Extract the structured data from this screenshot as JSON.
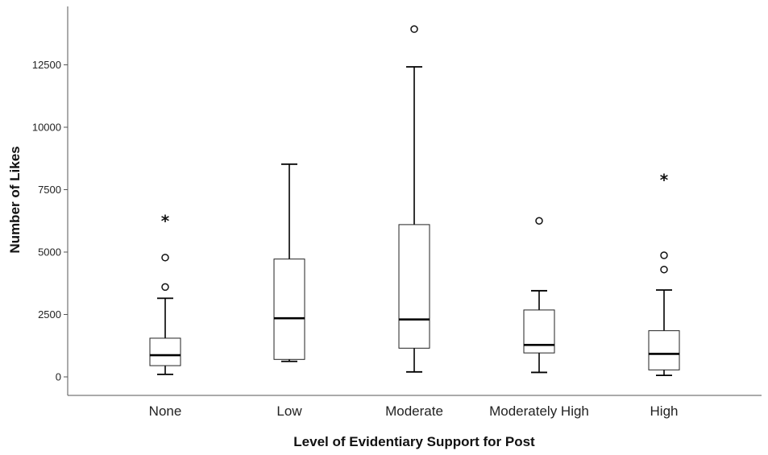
{
  "chart_data": {
    "type": "boxplot",
    "xlabel": "Level of Evidentiary Support for Post",
    "ylabel": "Number of Likes",
    "ylim": [
      -600,
      15000
    ],
    "yticks": [
      0,
      2500,
      5000,
      7500,
      10000,
      12500
    ],
    "ytick_labels": [
      "0",
      "2500",
      "5000",
      "7500",
      "10000",
      "12500"
    ],
    "grid": false,
    "categories": [
      "None",
      "Low",
      "Moderate",
      "Moderately High",
      "High"
    ],
    "boxes": [
      {
        "category": "None",
        "whisker_low": 100,
        "q1": 450,
        "median": 870,
        "q3": 1550,
        "whisker_high": 3150,
        "outliers": [
          4780,
          3600
        ],
        "extremes": [
          6300
        ]
      },
      {
        "category": "Low",
        "whisker_low": 620,
        "q1": 700,
        "median": 2350,
        "q3": 4720,
        "whisker_high": 8520,
        "outliers": [],
        "extremes": []
      },
      {
        "category": "Moderate",
        "whisker_low": 200,
        "q1": 1150,
        "median": 2300,
        "q3": 6100,
        "whisker_high": 12420,
        "outliers": [
          13930
        ],
        "extremes": []
      },
      {
        "category": "Moderately High",
        "whisker_low": 180,
        "q1": 960,
        "median": 1280,
        "q3": 2680,
        "whisker_high": 3450,
        "outliers": [
          6250
        ],
        "extremes": []
      },
      {
        "category": "High",
        "whisker_low": 60,
        "q1": 280,
        "median": 920,
        "q3": 1850,
        "whisker_high": 3480,
        "outliers": [
          4870,
          4300
        ],
        "extremes": [
          7950
        ]
      }
    ]
  }
}
